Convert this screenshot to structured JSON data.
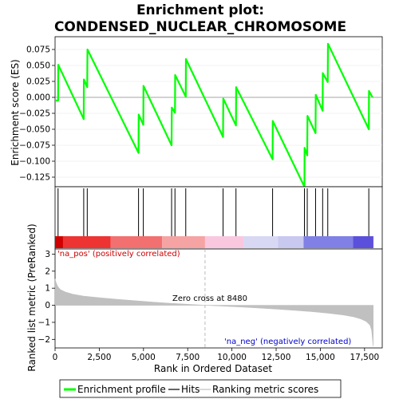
{
  "chart_data": {
    "type": "line",
    "title_line1": "Enrichment plot:",
    "title_line2": "CONDENSED_NUCLEAR_CHROMOSOME",
    "top_panel": {
      "ylabel": "Enrichment score (ES)",
      "ylim": [
        -0.14,
        0.095
      ],
      "yticks": [
        -0.125,
        -0.1,
        -0.075,
        -0.05,
        -0.025,
        0.0,
        0.025,
        0.05,
        0.075
      ],
      "ytick_labels": [
        "−0.125",
        "−0.100",
        "−0.075",
        "−0.050",
        "−0.025",
        "0.000",
        "0.025",
        "0.050",
        "0.075"
      ],
      "series": [
        {
          "name": "Enrichment profile",
          "color": "#00ff00",
          "x": [
            0,
            170,
            180,
            1620,
            1630,
            1820,
            1830,
            4720,
            4730,
            4990,
            5000,
            6590,
            6600,
            6780,
            6790,
            7390,
            7400,
            9500,
            9510,
            10230,
            10240,
            12300,
            12310,
            14100,
            14110,
            14260,
            14270,
            14730,
            14740,
            15130,
            15140,
            15420,
            15430,
            17740,
            17750,
            17950
          ],
          "y": [
            -0.005,
            -0.005,
            0.051,
            -0.034,
            0.028,
            0.016,
            0.075,
            -0.087,
            -0.027,
            -0.043,
            0.018,
            -0.075,
            -0.016,
            -0.024,
            0.035,
            0.001,
            0.06,
            -0.062,
            -0.002,
            -0.044,
            0.016,
            -0.097,
            -0.037,
            -0.14,
            -0.079,
            -0.091,
            -0.029,
            -0.056,
            0.004,
            -0.021,
            0.038,
            0.024,
            0.084,
            -0.05,
            0.01,
            0.0
          ]
        }
      ]
    },
    "hits": [
      170,
      1620,
      1820,
      4720,
      4990,
      6590,
      6780,
      7390,
      9500,
      10230,
      12300,
      14100,
      14260,
      14730,
      15130,
      15420,
      17740
    ],
    "colorbar": {
      "colors": [
        "#d10000",
        "#ee3333",
        "#f37070",
        "#f6a3a3",
        "#f9c8df",
        "#d8d8f4",
        "#c8c8f0",
        "#8080e6",
        "#5a50dc",
        "#2d00c8"
      ],
      "bounds": [
        0,
        450,
        3150,
        6050,
        8480,
        10650,
        12600,
        14050,
        16850,
        17950,
        17990
      ]
    },
    "bottom_panel": {
      "xlabel": "Rank in Ordered Dataset",
      "ylabel": "Ranked list metric (PreRanked)",
      "xlim": [
        0,
        18500
      ],
      "xticks": [
        0,
        2500,
        5000,
        7500,
        10000,
        12500,
        15000,
        17500
      ],
      "xtick_labels": [
        "0",
        "2,500",
        "5,000",
        "7,500",
        "10,000",
        "12,500",
        "15,000",
        "17,500"
      ],
      "ylim": [
        -2.5,
        3.3
      ],
      "yticks": [
        -2,
        -1,
        0,
        1,
        2,
        3
      ],
      "ytick_labels": [
        "−2",
        "−1",
        "0",
        "1",
        "2",
        "3"
      ],
      "metric_curve": {
        "name": "Ranking metric scores",
        "color": "#c0c0c0",
        "x": [
          0,
          50,
          150,
          300,
          600,
          1000,
          1600,
          2500,
          3500,
          4500,
          5500,
          6500,
          7500,
          8480,
          9500,
          10500,
          11500,
          12500,
          13500,
          14500,
          15500,
          16300,
          16900,
          17300,
          17600,
          17800,
          17900,
          17990
        ],
        "y": [
          1.55,
          1.35,
          1.1,
          0.92,
          0.77,
          0.65,
          0.54,
          0.44,
          0.35,
          0.27,
          0.19,
          0.12,
          0.06,
          0.0,
          -0.05,
          -0.1,
          -0.16,
          -0.22,
          -0.29,
          -0.37,
          -0.47,
          -0.57,
          -0.68,
          -0.8,
          -0.95,
          -1.15,
          -1.45,
          -2.4
        ]
      },
      "pos_label": "'na_pos' (positively correlated)",
      "neg_label": "'na_neg' (negatively correlated)",
      "zero_cross_label": "Zero cross at 8480",
      "zero_cross": 8480
    },
    "legend": {
      "items": [
        {
          "label": "Enrichment profile",
          "color": "#00ff00"
        },
        {
          "label": "Hits",
          "color": "#000000"
        },
        {
          "label": "Ranking metric scores",
          "color": "#c0c0c0"
        }
      ]
    }
  }
}
